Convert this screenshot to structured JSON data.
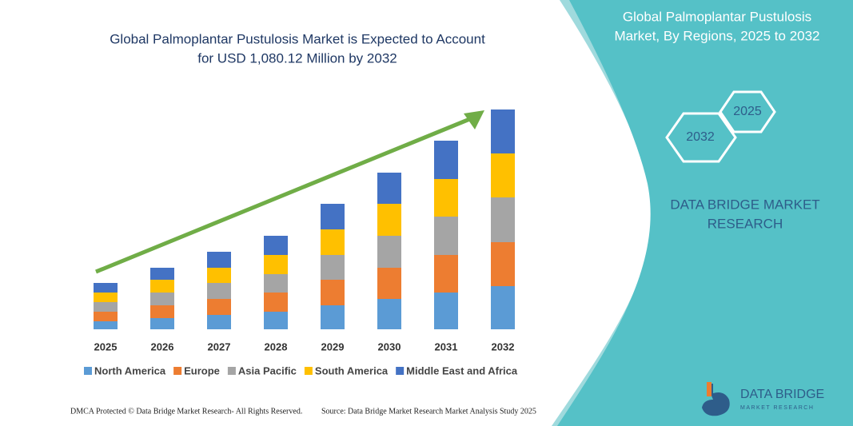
{
  "chart_data": {
    "type": "bar",
    "stacked": true,
    "title": [
      "Global Palmoplantar Pustulosis Market is Expected to Account",
      "for USD 1,080.12 Million by 2032"
    ],
    "categories": [
      "2025",
      "2026",
      "2027",
      "2028",
      "2029",
      "2030",
      "2031",
      "2032"
    ],
    "series": [
      {
        "name": "North America",
        "color": "#5b9bd5",
        "values": [
          10,
          14,
          18,
          22,
          30,
          38,
          46,
          54
        ]
      },
      {
        "name": "Europe",
        "color": "#ed7d31",
        "values": [
          12,
          16,
          20,
          24,
          32,
          39,
          47,
          55
        ]
      },
      {
        "name": "Asia Pacific",
        "color": "#a5a5a5",
        "values": [
          12,
          16,
          20,
          23,
          31,
          40,
          48,
          56
        ]
      },
      {
        "name": "South America",
        "color": "#ffc000",
        "values": [
          12,
          16,
          19,
          24,
          32,
          40,
          47,
          55
        ]
      },
      {
        "name": "Middle East and Africa",
        "color": "#4472c4",
        "values": [
          12,
          15,
          20,
          24,
          32,
          39,
          48,
          55
        ]
      }
    ],
    "legend": "bottom"
  },
  "panel": {
    "title": [
      "Global Palmoplantar Pustulosis",
      "Market, By Regions, 2025 to 2032"
    ],
    "hexagons": [
      "2025",
      "2032"
    ],
    "brand": [
      "DATA BRIDGE MARKET",
      "RESEARCH"
    ]
  },
  "footer": {
    "left": "DMCA Protected © Data Bridge Market Research- All Rights Reserved.",
    "right": "Source: Data Bridge Market Research Market Analysis Study 2025"
  },
  "logo": [
    "DATA BRIDGE",
    "MARKET RESEARCH"
  ]
}
